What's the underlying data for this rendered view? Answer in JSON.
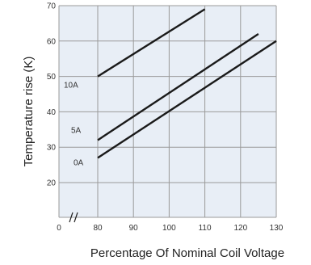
{
  "chart_data": {
    "type": "line",
    "title": "",
    "xlabel": "Percentage Of Nominal Coil Voltage",
    "ylabel": "Temperature rise (K)",
    "xlim": [
      70,
      130
    ],
    "ylim": [
      10,
      70
    ],
    "grid": true,
    "axis_break": "x",
    "x_ticks": [
      "0",
      "80",
      "90",
      "100",
      "110",
      "120",
      "130"
    ],
    "y_ticks": [
      "20",
      "30",
      "40",
      "50",
      "60",
      "70"
    ],
    "series": [
      {
        "name": "10A",
        "x": [
          80,
          110
        ],
        "y": [
          50,
          69
        ]
      },
      {
        "name": "5A",
        "x": [
          80,
          125
        ],
        "y": [
          32,
          62
        ]
      },
      {
        "name": "0A",
        "x": [
          80,
          130
        ],
        "y": [
          27,
          60
        ]
      }
    ],
    "line_color": "#1a1a1a",
    "grid_color": "#9a9a9a",
    "plot_background": "#e8eef6"
  }
}
